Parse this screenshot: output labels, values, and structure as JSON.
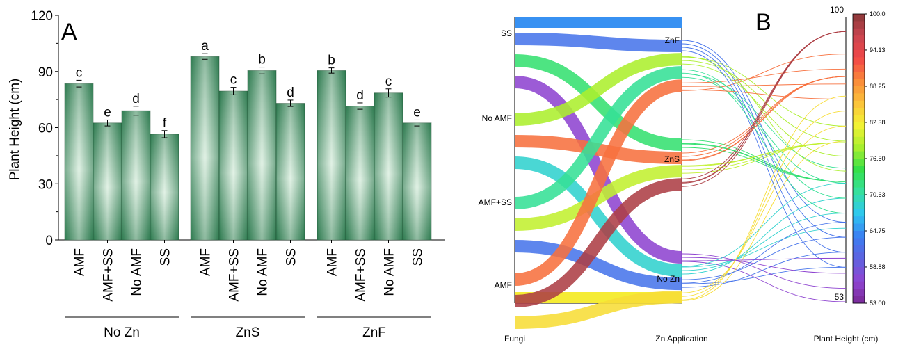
{
  "chart_data": [
    {
      "type": "bar",
      "panel_label": "A",
      "ylabel": "Plant Height (cm)",
      "ylim": [
        0,
        120
      ],
      "yticks": [
        "0",
        "30",
        "60",
        "90",
        "120"
      ],
      "groups": [
        {
          "label": "No Zn",
          "categories": [
            "AMF",
            "AMF+SS",
            "No AMF",
            "SS"
          ],
          "values": [
            83.5,
            62.5,
            69.0,
            56.5
          ],
          "errors": [
            1.8,
            1.6,
            2.4,
            1.9
          ],
          "letters": [
            "c",
            "e",
            "d",
            "f"
          ]
        },
        {
          "label": "ZnS",
          "categories": [
            "AMF",
            "AMF+SS",
            "No AMF",
            "SS"
          ],
          "values": [
            98.0,
            79.5,
            90.5,
            73.0
          ],
          "errors": [
            1.5,
            2.0,
            1.8,
            1.7
          ],
          "letters": [
            "a",
            "c",
            "b",
            "d"
          ]
        },
        {
          "label": "ZnF",
          "categories": [
            "AMF",
            "AMF+SS",
            "No AMF",
            "SS"
          ],
          "values": [
            90.5,
            71.5,
            78.5,
            62.5
          ],
          "errors": [
            1.4,
            1.7,
            2.2,
            1.6
          ],
          "letters": [
            "b",
            "d",
            "c",
            "e"
          ]
        }
      ],
      "bar_color": "#2d7a4f",
      "bar_highlight": "#e2f2e6"
    },
    {
      "type": "alluvial",
      "panel_label": "B",
      "axes": [
        "Fungi",
        "Zn Application",
        "Plant Height (cm)"
      ],
      "fungi_levels": [
        "SS",
        "No AMF",
        "AMF+SS",
        "AMF"
      ],
      "zn_levels": [
        "ZnF",
        "ZnS",
        "No Zn"
      ],
      "height_range": [
        53,
        100
      ],
      "height_axis_labels": [
        "100",
        "53"
      ],
      "flows": [
        {
          "fungi": "SS",
          "zn": "ZnF",
          "height": 62.5
        },
        {
          "fungi": "SS",
          "zn": "ZnS",
          "height": 73.0
        },
        {
          "fungi": "SS",
          "zn": "No Zn",
          "height": 56.5
        },
        {
          "fungi": "No AMF",
          "zn": "ZnF",
          "height": 78.5
        },
        {
          "fungi": "No AMF",
          "zn": "ZnS",
          "height": 90.5
        },
        {
          "fungi": "No AMF",
          "zn": "No Zn",
          "height": 69.0
        },
        {
          "fungi": "AMF+SS",
          "zn": "ZnF",
          "height": 71.5
        },
        {
          "fungi": "AMF+SS",
          "zn": "ZnS",
          "height": 79.5
        },
        {
          "fungi": "AMF+SS",
          "zn": "No Zn",
          "height": 62.5
        },
        {
          "fungi": "AMF",
          "zn": "ZnF",
          "height": 90.5
        },
        {
          "fungi": "AMF",
          "zn": "ZnS",
          "height": 98.0
        },
        {
          "fungi": "AMF",
          "zn": "No Zn",
          "height": 83.5
        }
      ],
      "colorbar": {
        "min": 53.0,
        "max": 100.0,
        "tick_labels": [
          "100.0",
          "94.13",
          "88.25",
          "82.38",
          "76.50",
          "70.63",
          "64.75",
          "58.88",
          "53.00"
        ],
        "colors": [
          "#7a2a96",
          "#8f45d2",
          "#5e63e0",
          "#3b7ff2",
          "#2ec7f0",
          "#36e0a0",
          "#35e048",
          "#a8ef2e",
          "#f4f234",
          "#fbc23a",
          "#fa8a3a",
          "#f24848",
          "#c94450",
          "#8a3838"
        ]
      }
    }
  ]
}
